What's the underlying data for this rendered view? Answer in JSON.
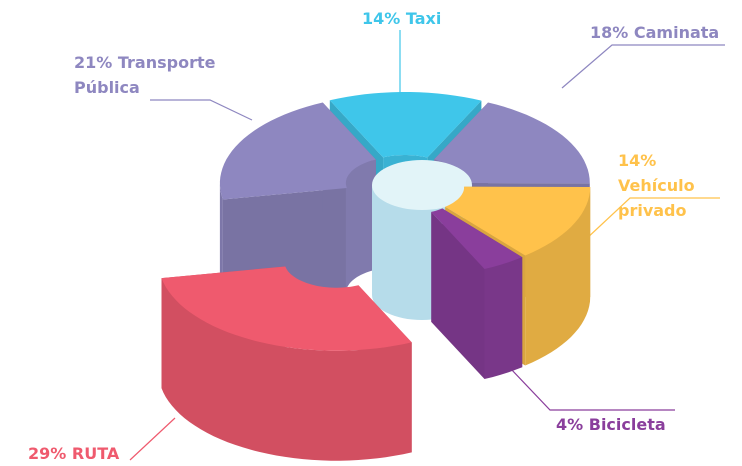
{
  "chart_data": {
    "type": "pie",
    "categories": [
      "Taxi",
      "Caminata",
      "Vehículo privado",
      "Bicicleta",
      "RUTA",
      "Transporte Pública"
    ],
    "values": [
      14,
      18,
      14,
      4,
      29,
      21
    ],
    "value_labels": [
      "14%",
      "18%",
      "14%",
      "4%",
      "29%",
      "21%"
    ],
    "colors": [
      "#3fc6ea",
      "#8e87c0",
      "#ffc24b",
      "#8a3e9c",
      "#ef5a6e",
      "#8e87c0"
    ]
  }
}
